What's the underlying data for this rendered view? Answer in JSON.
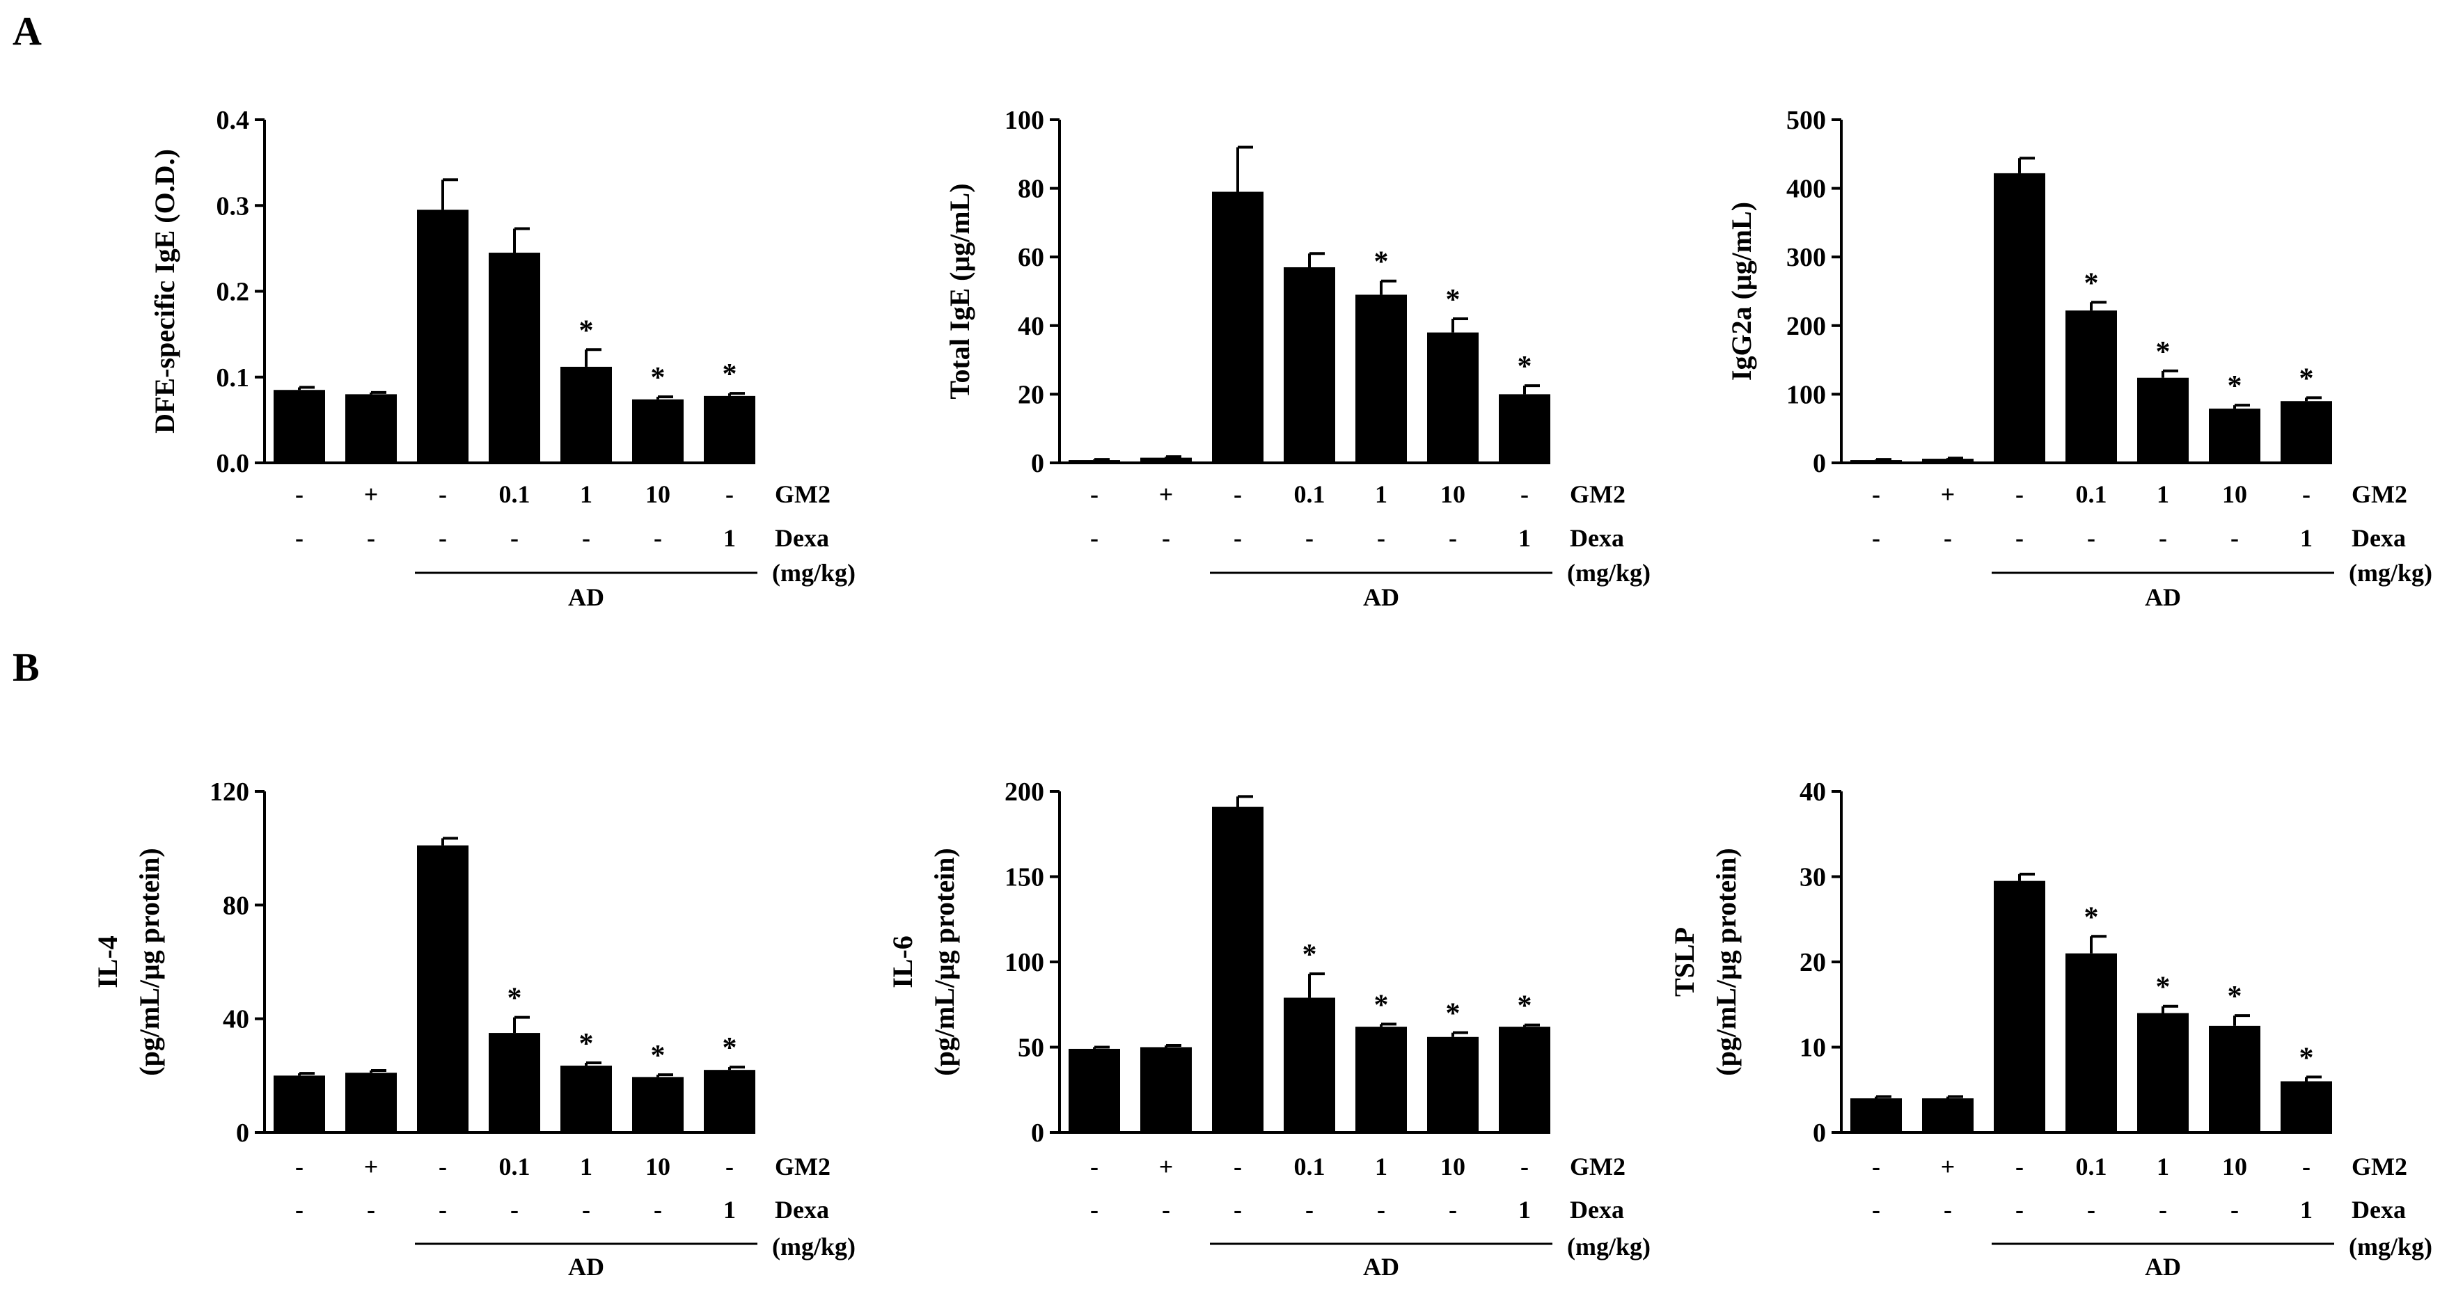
{
  "panel_labels": [
    "A",
    "B"
  ],
  "row_labels": {
    "gm2": "GM2",
    "dexa": "Dexa",
    "unit": "(mg/kg)",
    "group": "AD",
    "gm2_values": [
      "-",
      "+",
      "-",
      "0.1",
      "1",
      "10",
      "-"
    ],
    "dexa_values": [
      "-",
      "-",
      "-",
      "-",
      "-",
      "-",
      "1"
    ]
  },
  "chart_data": [
    {
      "type": "bar",
      "panel": "A",
      "ylabel_lines": [
        "DFE-specific IgE (O.D.)"
      ],
      "ylim": [
        0,
        0.4
      ],
      "yticks": [
        "0.0",
        "0.1",
        "0.2",
        "0.3",
        "0.4"
      ],
      "values": [
        0.085,
        0.08,
        0.295,
        0.245,
        0.112,
        0.074,
        0.078
      ],
      "errors": [
        0.003,
        0.002,
        0.035,
        0.028,
        0.02,
        0.003,
        0.003
      ],
      "significant": [
        false,
        false,
        false,
        false,
        true,
        true,
        true
      ]
    },
    {
      "type": "bar",
      "panel": "A",
      "ylabel_lines": [
        "Total IgE (μg/mL)"
      ],
      "ylim": [
        0,
        100
      ],
      "yticks": [
        "0",
        "20",
        "40",
        "60",
        "80",
        "100"
      ],
      "values": [
        0.8,
        1.5,
        79,
        57,
        49,
        38,
        20
      ],
      "errors": [
        0.2,
        0.3,
        13,
        4,
        4,
        4,
        2.5
      ],
      "significant": [
        false,
        false,
        false,
        false,
        true,
        true,
        true
      ]
    },
    {
      "type": "bar",
      "panel": "A",
      "ylabel_lines": [
        "IgG2a (μg/mL)"
      ],
      "ylim": [
        0,
        500
      ],
      "yticks": [
        "0",
        "100",
        "200",
        "300",
        "400",
        "500"
      ],
      "values": [
        4,
        6,
        422,
        222,
        124,
        79,
        90
      ],
      "errors": [
        1,
        1,
        22,
        12,
        10,
        5,
        5
      ],
      "significant": [
        false,
        false,
        false,
        true,
        true,
        true,
        true
      ]
    },
    {
      "type": "bar",
      "panel": "B",
      "ylabel_lines": [
        "IL-4",
        "(pg/mL/μg protein)"
      ],
      "ylim": [
        0,
        120
      ],
      "yticks": [
        "0",
        "40",
        "80",
        "120"
      ],
      "values": [
        20,
        21,
        101,
        35,
        23.5,
        19.5,
        22
      ],
      "errors": [
        0.8,
        0.8,
        2.5,
        5.5,
        1,
        0.8,
        1
      ],
      "significant": [
        false,
        false,
        false,
        true,
        true,
        true,
        true
      ]
    },
    {
      "type": "bar",
      "panel": "B",
      "ylabel_lines": [
        "IL-6",
        "(pg/mL/μg protein)"
      ],
      "ylim": [
        0,
        200
      ],
      "yticks": [
        "0",
        "50",
        "100",
        "150",
        "200"
      ],
      "values": [
        49,
        50,
        191,
        79,
        62,
        56,
        62
      ],
      "errors": [
        1,
        1,
        6,
        14,
        1.5,
        2.5,
        1
      ],
      "significant": [
        false,
        false,
        false,
        true,
        true,
        true,
        true
      ]
    },
    {
      "type": "bar",
      "panel": "B",
      "ylabel_lines": [
        "TSLP",
        "(pg/mL/μg protein)"
      ],
      "ylim": [
        0,
        40
      ],
      "yticks": [
        "0",
        "10",
        "20",
        "30",
        "40"
      ],
      "values": [
        4,
        4,
        29.5,
        21,
        14,
        12.5,
        6
      ],
      "errors": [
        0.2,
        0.2,
        0.8,
        2,
        0.8,
        1.2,
        0.5
      ],
      "significant": [
        false,
        false,
        false,
        true,
        true,
        true,
        true
      ]
    }
  ]
}
